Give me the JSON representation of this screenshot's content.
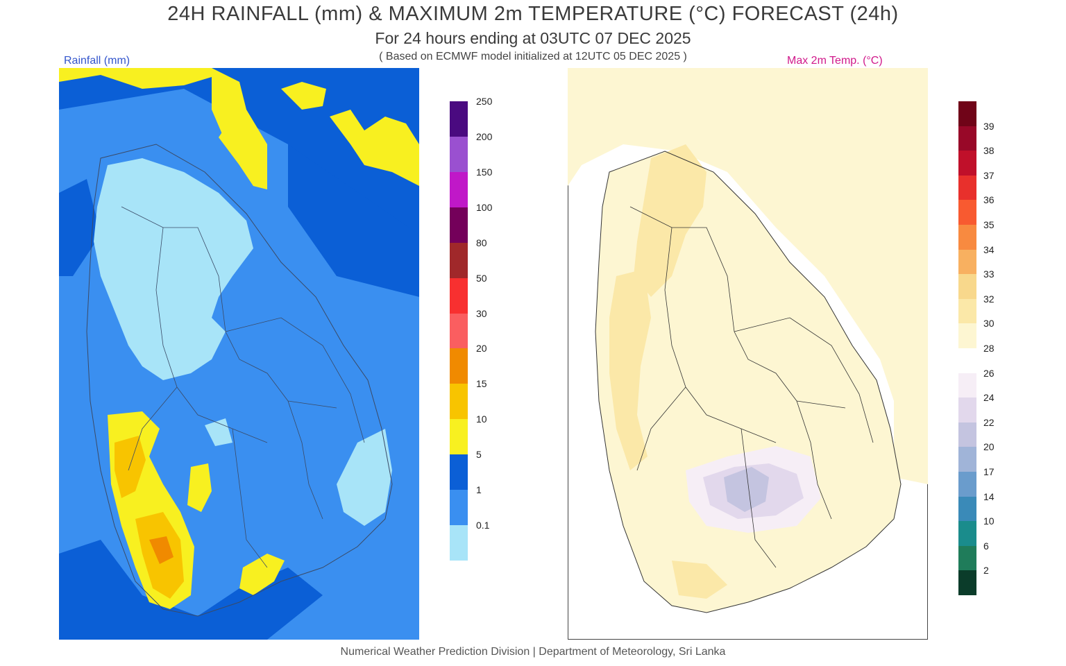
{
  "header": {
    "title": "24H RAINFALL (mm) & MAXIMUM 2m TEMPERATURE (°C) FORECAST (24h)",
    "subtitle": "For 24 hours ending at 03UTC 07 DEC 2025",
    "note": "( Based on ECMWF model initialized at 12UTC 05 DEC 2025 )"
  },
  "panels": {
    "rain_label": "Rainfall (mm)",
    "temp_label": "Max 2m Temp. (°C)"
  },
  "rain_colorbar": {
    "colors": [
      "#a8e4f8",
      "#3a8ff0",
      "#0b5fd6",
      "#f8f020",
      "#f8c400",
      "#f08a00",
      "#fa5e60",
      "#f83030",
      "#a0282a",
      "#74005a",
      "#c018c8",
      "#9a50d0",
      "#4a0a80"
    ],
    "ticks": [
      "0.1",
      "1",
      "5",
      "10",
      "15",
      "20",
      "30",
      "50",
      "80",
      "100",
      "150",
      "200",
      "250"
    ]
  },
  "temp_colorbar": {
    "colors": [
      "#0b3c2a",
      "#1f7c5a",
      "#1a8c8c",
      "#3a8ab8",
      "#6a9ccc",
      "#a0b4d8",
      "#c4c4e0",
      "#e2d8ec",
      "#f6eef6",
      "#ffffff",
      "#fdf6d2",
      "#fbe8a8",
      "#f8d88c",
      "#f8b060",
      "#f88a40",
      "#f85a30",
      "#e8302c",
      "#c0102a",
      "#980828",
      "#700418"
    ],
    "ticks": [
      "2",
      "6",
      "10",
      "14",
      "17",
      "20",
      "22",
      "24",
      "26",
      "28",
      "30",
      "32",
      "33",
      "34",
      "35",
      "36",
      "37",
      "38",
      "39"
    ]
  },
  "footer": "Numerical Weather Prediction Division | Department of Meteorology, Sri Lanka"
}
